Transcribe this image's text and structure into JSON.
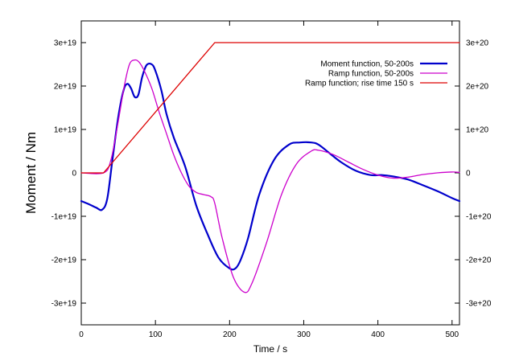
{
  "chart_data": {
    "type": "line",
    "xlabel": "Time / s",
    "ylabel": "Moment / Nm",
    "y2label": "",
    "xlim": [
      0,
      510
    ],
    "ylim": [
      -3.5e+19,
      3.5e+19
    ],
    "y2lim": [
      -3.5e+20,
      3.5e+20
    ],
    "grid": false,
    "legend_position": "top-right",
    "x_ticks": [
      0,
      100,
      200,
      300,
      400,
      500
    ],
    "x_tick_labels": [
      "0",
      "100",
      "200",
      "300",
      "400",
      "500"
    ],
    "y_ticks": [
      3e+19,
      2e+19,
      1e+19,
      0,
      -1e+19,
      -2e+19,
      -3e+19
    ],
    "y_tick_labels": [
      "3e+19",
      "2e+19",
      "1e+19",
      "0",
      "-1e+19",
      "-2e+19",
      "-3e+19"
    ],
    "y2_ticks": [
      3e+20,
      2e+20,
      1e+20,
      0,
      -1e+20,
      -2e+20,
      -3e+20
    ],
    "y2_tick_labels": [
      "3e+20",
      "2e+20",
      "1e+20",
      "0",
      "-1e+20",
      "-2e+20",
      "-3e+20"
    ],
    "series": [
      {
        "name": "Moment function, 50-200s",
        "color": "#0000cc",
        "axis": "left",
        "width": 2.2,
        "x": [
          0,
          10,
          20,
          28,
          35,
          42,
          50,
          57,
          62,
          67,
          72,
          77,
          82,
          88,
          95,
          100,
          108,
          115,
          125,
          140,
          155,
          170,
          185,
          200,
          208,
          215,
          225,
          240,
          260,
          280,
          295,
          310,
          320,
          335,
          350,
          370,
          390,
          405,
          420,
          440,
          460,
          480,
          500,
          510
        ],
        "y": [
          -6.5e+18,
          -7.2e+18,
          -8e+18,
          -8.5e+18,
          -6e+18,
          3e+18,
          1.3e+19,
          1.9e+19,
          2.05e+19,
          1.95e+19,
          1.75e+19,
          1.8e+19,
          2.2e+19,
          2.48e+19,
          2.5e+19,
          2.35e+19,
          1.9e+19,
          1.35e+19,
          8e+18,
          1.5e+18,
          -7.5e+18,
          -1.4e+19,
          -1.95e+19,
          -2.2e+19,
          -2.2e+19,
          -2e+19,
          -1.5e+19,
          -5e+18,
          3e+18,
          6.5e+18,
          7e+18,
          7e+18,
          6.5e+18,
          4.5e+18,
          2.5e+18,
          5e+17,
          -5e+17,
          -5e+17,
          -8e+17,
          -1.5e+18,
          -2.8e+18,
          -4.2e+18,
          -5.8e+18,
          -6.5e+18
        ]
      },
      {
        "name": "Ramp function, 50-200s",
        "color": "#cc00cc",
        "axis": "left",
        "width": 1.3,
        "x": [
          0,
          30,
          40,
          50,
          58,
          65,
          72,
          78,
          85,
          95,
          105,
          115,
          125,
          135,
          145,
          155,
          165,
          175,
          180,
          190,
          205,
          220,
          230,
          250,
          270,
          290,
          310,
          320,
          340,
          360,
          380,
          400,
          420,
          440,
          460,
          480,
          500,
          510
        ],
        "y": [
          0,
          0,
          3e+18,
          1.2e+19,
          2e+19,
          2.5e+19,
          2.6e+19,
          2.55e+19,
          2.35e+19,
          1.95e+19,
          1.4e+19,
          9e+18,
          4e+18,
          0.0,
          -3e+18,
          -4.5e+18,
          -5e+18,
          -5.5e+18,
          -7e+18,
          -1.5e+19,
          -2.4e+19,
          -2.75e+19,
          -2.55e+19,
          -1.6e+19,
          -5e+18,
          2e+18,
          5e+18,
          5.2e+18,
          4.2e+18,
          2.5e+18,
          8e+17,
          -5e+17,
          -1.2e+18,
          -1e+18,
          -4e+17,
          0.0,
          2e+17,
          1e+17
        ]
      },
      {
        "name": "Ramp function; rise time 150 s",
        "color": "#dd0000",
        "axis": "right",
        "width": 1.3,
        "x": [
          0,
          30,
          180,
          510
        ],
        "y": [
          0,
          0,
          3e+20,
          3e+20
        ]
      }
    ]
  }
}
